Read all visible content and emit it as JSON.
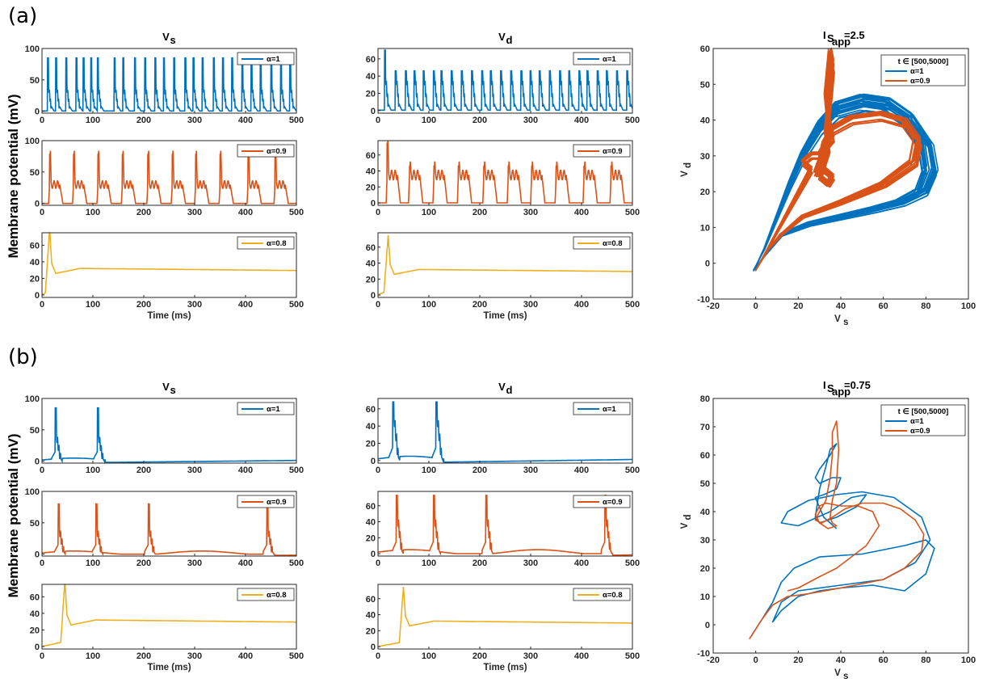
{
  "figure": {
    "panel_labels": [
      "(a)",
      "(b)"
    ],
    "y_label": "Membrane potential (mV)"
  },
  "colors": {
    "alpha_1": "#0072BD",
    "alpha_09": "#D95319",
    "alpha_08": "#EDB120"
  },
  "chart_data": [
    {
      "panel": "(a)",
      "column": "Vs",
      "type": "line",
      "title": "V",
      "title_sub": "s",
      "xlabel": "Time (ms)",
      "rows": [
        {
          "legend": "α=1",
          "color": "#0072BD",
          "xlim": [
            0,
            500
          ],
          "ylim": [
            -3,
            100
          ],
          "yticks": [
            0,
            50,
            100
          ],
          "xticks": [
            0,
            100,
            200,
            300,
            400,
            500
          ],
          "signal": {
            "kind": "burst",
            "rest": 0,
            "peak": 85,
            "spike_times": [
              12,
              28,
              48,
              68,
              82,
              97,
              110,
              143,
              160,
              183,
              203,
              223,
              240,
              260,
              282,
              298,
              316,
              338,
              356,
              374,
              394,
              412,
              430,
              451,
              470,
              488
            ],
            "secondary": 40
          }
        },
        {
          "legend": "α=0.9",
          "color": "#D95319",
          "xlim": [
            0,
            500
          ],
          "ylim": [
            -3,
            100
          ],
          "yticks": [
            0,
            50,
            100
          ],
          "xticks": [
            0,
            100,
            200,
            300,
            400,
            500
          ],
          "signal": {
            "kind": "plateau",
            "rest": 0,
            "peak": 78,
            "plateau": 30,
            "spike_times": [
              15,
              62,
              110,
              158,
              208,
              256,
              302,
              350,
              405,
              458
            ]
          }
        },
        {
          "legend": "α=0.8",
          "color": "#EDB120",
          "xlim": [
            0,
            500
          ],
          "ylim": [
            -3,
            75
          ],
          "yticks": [
            0,
            20,
            40,
            60
          ],
          "xticks": [
            0,
            100,
            200,
            300,
            400,
            500
          ],
          "show_xlabel": true,
          "signal": {
            "kind": "settle",
            "rest": 0,
            "peak": 80,
            "onset": 15,
            "settle": 30
          }
        }
      ]
    },
    {
      "panel": "(a)",
      "column": "Vd",
      "type": "line",
      "title": "V",
      "title_sub": "d",
      "xlabel": "Time (ms)",
      "rows": [
        {
          "legend": "α=1",
          "color": "#0072BD",
          "xlim": [
            0,
            500
          ],
          "ylim": [
            -3,
            72
          ],
          "yticks": [
            0,
            20,
            40,
            60
          ],
          "xticks": [
            0,
            100,
            200,
            300,
            400,
            500
          ],
          "signal": {
            "kind": "burst",
            "rest": 0,
            "peak": 46,
            "first_peak": 70,
            "spike_times": [
              14,
              35,
              55,
              72,
              90,
              110,
              125,
              145,
              165,
              185,
              205,
              222,
              242,
              262,
              282,
              300,
              318,
              338,
              358,
              376,
              396,
              412,
              432,
              450,
              470,
              490
            ],
            "secondary": 40
          }
        },
        {
          "legend": "α=0.9",
          "color": "#D95319",
          "xlim": [
            0,
            500
          ],
          "ylim": [
            -3,
            78
          ],
          "yticks": [
            0,
            20,
            40,
            60
          ],
          "xticks": [
            0,
            100,
            200,
            300,
            400,
            500
          ],
          "signal": {
            "kind": "plateau",
            "rest": 0,
            "peak": 46,
            "first_peak": 75,
            "plateau": 35,
            "spike_times": [
              18,
              62,
              110,
              158,
              208,
              256,
              302,
              350,
              405,
              458
            ]
          }
        },
        {
          "legend": "α=0.8",
          "color": "#EDB120",
          "xlim": [
            0,
            500
          ],
          "ylim": [
            -3,
            78
          ],
          "yticks": [
            0,
            20,
            40,
            60
          ],
          "xticks": [
            0,
            100,
            200,
            300,
            400,
            500
          ],
          "show_xlabel": true,
          "signal": {
            "kind": "settle",
            "rest": 0,
            "peak": 75,
            "onset": 20,
            "settle": 30
          }
        }
      ]
    },
    {
      "panel": "(a)",
      "column": "phase",
      "type": "line",
      "title": "I",
      "title_sub": "S",
      "title_subsub": "app",
      "title_value": "=2.5",
      "xlabel": "V",
      "xlabel_sub": "s",
      "ylabel": "V",
      "ylabel_sub": "d",
      "xlim": [
        -20,
        100
      ],
      "ylim": [
        -10,
        60
      ],
      "xticks": [
        -20,
        0,
        20,
        40,
        60,
        80,
        100
      ],
      "yticks": [
        -10,
        0,
        10,
        20,
        30,
        40,
        50,
        60
      ],
      "legend_title": "t ∈ [500,5000]",
      "series": [
        {
          "name": "α=1",
          "color": "#0072BD"
        },
        {
          "name": "α=0.9",
          "color": "#D95319"
        }
      ]
    },
    {
      "panel": "(b)",
      "column": "Vs",
      "type": "line",
      "title": "V",
      "title_sub": "s",
      "xlabel": "Time (ms)",
      "rows": [
        {
          "legend": "α=1",
          "color": "#0072BD",
          "xlim": [
            0,
            500
          ],
          "ylim": [
            -3,
            100
          ],
          "yticks": [
            0,
            50,
            100
          ],
          "xticks": [
            0,
            100,
            200,
            300,
            400,
            500
          ],
          "signal": {
            "kind": "sparse",
            "rest": 0,
            "peak": 85,
            "secondary": 40,
            "spike_times": [
              27,
              110
            ]
          }
        },
        {
          "legend": "α=0.9",
          "color": "#D95319",
          "xlim": [
            0,
            500
          ],
          "ylim": [
            -3,
            100
          ],
          "yticks": [
            0,
            50,
            100
          ],
          "xticks": [
            0,
            100,
            200,
            300,
            400,
            500
          ],
          "signal": {
            "kind": "sparse",
            "rest": 0,
            "peak": 80,
            "secondary": 38,
            "spike_times": [
              33,
              107,
              210,
              443
            ]
          }
        },
        {
          "legend": "α=0.8",
          "color": "#EDB120",
          "xlim": [
            0,
            500
          ],
          "ylim": [
            -3,
            75
          ],
          "yticks": [
            0,
            20,
            40,
            60
          ],
          "xticks": [
            0,
            100,
            200,
            300,
            400,
            500
          ],
          "show_xlabel": true,
          "signal": {
            "kind": "settle",
            "rest": 0,
            "peak": 80,
            "onset": 45,
            "settle": 30
          }
        }
      ]
    },
    {
      "panel": "(b)",
      "column": "Vd",
      "type": "line",
      "title": "V",
      "title_sub": "d",
      "xlabel": "Time (ms)",
      "rows": [
        {
          "legend": "α=1",
          "color": "#0072BD",
          "xlim": [
            0,
            500
          ],
          "ylim": [
            -3,
            72
          ],
          "yticks": [
            0,
            20,
            40,
            60
          ],
          "xticks": [
            0,
            100,
            200,
            300,
            400,
            500
          ],
          "signal": {
            "kind": "sparse",
            "rest": 0,
            "peak": 68,
            "secondary": 50,
            "spike_times": [
              30,
              115
            ]
          }
        },
        {
          "legend": "α=0.9",
          "color": "#D95319",
          "xlim": [
            0,
            500
          ],
          "ylim": [
            -3,
            78
          ],
          "yticks": [
            0,
            20,
            40,
            60
          ],
          "xticks": [
            0,
            100,
            200,
            300,
            400,
            500
          ],
          "signal": {
            "kind": "sparse",
            "rest": 0,
            "peak": 73,
            "secondary": 45,
            "spike_times": [
              37,
              110,
              213,
              447
            ]
          }
        },
        {
          "legend": "α=0.8",
          "color": "#EDB120",
          "xlim": [
            0,
            500
          ],
          "ylim": [
            -3,
            78
          ],
          "yticks": [
            0,
            20,
            40,
            60
          ],
          "xticks": [
            0,
            100,
            200,
            300,
            400,
            500
          ],
          "show_xlabel": true,
          "signal": {
            "kind": "settle",
            "rest": 0,
            "peak": 75,
            "onset": 50,
            "settle": 30
          }
        }
      ]
    },
    {
      "panel": "(b)",
      "column": "phase",
      "type": "line",
      "title": "I",
      "title_sub": "S",
      "title_subsub": "app",
      "title_value": "=0.75",
      "xlabel": "V",
      "xlabel_sub": "s",
      "ylabel": "V",
      "ylabel_sub": "d",
      "xlim": [
        -20,
        100
      ],
      "ylim": [
        -10,
        80
      ],
      "xticks": [
        -20,
        0,
        20,
        40,
        60,
        80,
        100
      ],
      "yticks": [
        -10,
        0,
        10,
        20,
        30,
        40,
        50,
        60,
        70,
        80
      ],
      "legend_title": "t ∈ [500,5000]",
      "series": [
        {
          "name": "α=1",
          "color": "#0072BD",
          "points": [
            [
              -3,
              -5
            ],
            [
              3,
              2
            ],
            [
              8,
              8
            ],
            [
              12,
              15
            ],
            [
              18,
              20
            ],
            [
              30,
              24
            ],
            [
              50,
              25
            ],
            [
              70,
              28
            ],
            [
              80,
              30
            ],
            [
              84,
              27
            ],
            [
              80,
              18
            ],
            [
              70,
              12
            ],
            [
              55,
              14
            ],
            [
              40,
              13
            ],
            [
              30,
              12
            ],
            [
              20,
              10
            ],
            [
              12,
              5
            ],
            [
              8,
              1
            ],
            [
              12,
              8
            ],
            [
              20,
              12
            ],
            [
              40,
              14
            ],
            [
              60,
              16
            ],
            [
              75,
              22
            ],
            [
              82,
              30
            ],
            [
              78,
              38
            ],
            [
              65,
              45
            ],
            [
              50,
              47
            ],
            [
              38,
              46
            ],
            [
              25,
              44
            ],
            [
              15,
              40
            ],
            [
              12,
              36
            ],
            [
              20,
              35
            ],
            [
              35,
              40
            ],
            [
              45,
              45
            ],
            [
              52,
              46
            ],
            [
              48,
              42
            ],
            [
              38,
              38
            ],
            [
              30,
              36
            ],
            [
              28,
              38
            ],
            [
              30,
              48
            ],
            [
              33,
              56
            ],
            [
              35,
              62
            ],
            [
              38,
              64
            ],
            [
              35,
              60
            ],
            [
              30,
              55
            ],
            [
              28,
              52
            ],
            [
              30,
              50
            ],
            [
              36,
              52
            ],
            [
              40,
              52
            ],
            [
              38,
              48
            ],
            [
              32,
              46
            ],
            [
              28,
              45
            ],
            [
              32,
              38
            ],
            [
              38,
              34
            ]
          ]
        },
        {
          "name": "α=0.9",
          "color": "#D95319",
          "points": [
            [
              -3,
              -5
            ],
            [
              3,
              2
            ],
            [
              8,
              7
            ],
            [
              15,
              10
            ],
            [
              25,
              11
            ],
            [
              40,
              13
            ],
            [
              60,
              16
            ],
            [
              70,
              20
            ],
            [
              78,
              26
            ],
            [
              79,
              32
            ],
            [
              75,
              37
            ],
            [
              68,
              41
            ],
            [
              60,
              43
            ],
            [
              50,
              43
            ],
            [
              42,
              41
            ],
            [
              36,
              38
            ],
            [
              31,
              36
            ],
            [
              28,
              37
            ],
            [
              30,
              40
            ],
            [
              33,
              44
            ],
            [
              35,
              52
            ],
            [
              36,
              60
            ],
            [
              36,
              68
            ],
            [
              38,
              72
            ],
            [
              39,
              62
            ],
            [
              38,
              50
            ],
            [
              36,
              44
            ],
            [
              35,
              38
            ],
            [
              36,
              36
            ],
            [
              38,
              35
            ],
            [
              34,
              34
            ],
            [
              30,
              36
            ],
            [
              28,
              39
            ],
            [
              30,
              42
            ],
            [
              33,
              43
            ],
            [
              40,
              42
            ],
            [
              48,
              42
            ],
            [
              55,
              40
            ],
            [
              58,
              35
            ],
            [
              52,
              28
            ],
            [
              45,
              24
            ],
            [
              38,
              20
            ],
            [
              30,
              17
            ],
            [
              25,
              15
            ],
            [
              20,
              13
            ],
            [
              15,
              12
            ]
          ]
        }
      ]
    }
  ]
}
